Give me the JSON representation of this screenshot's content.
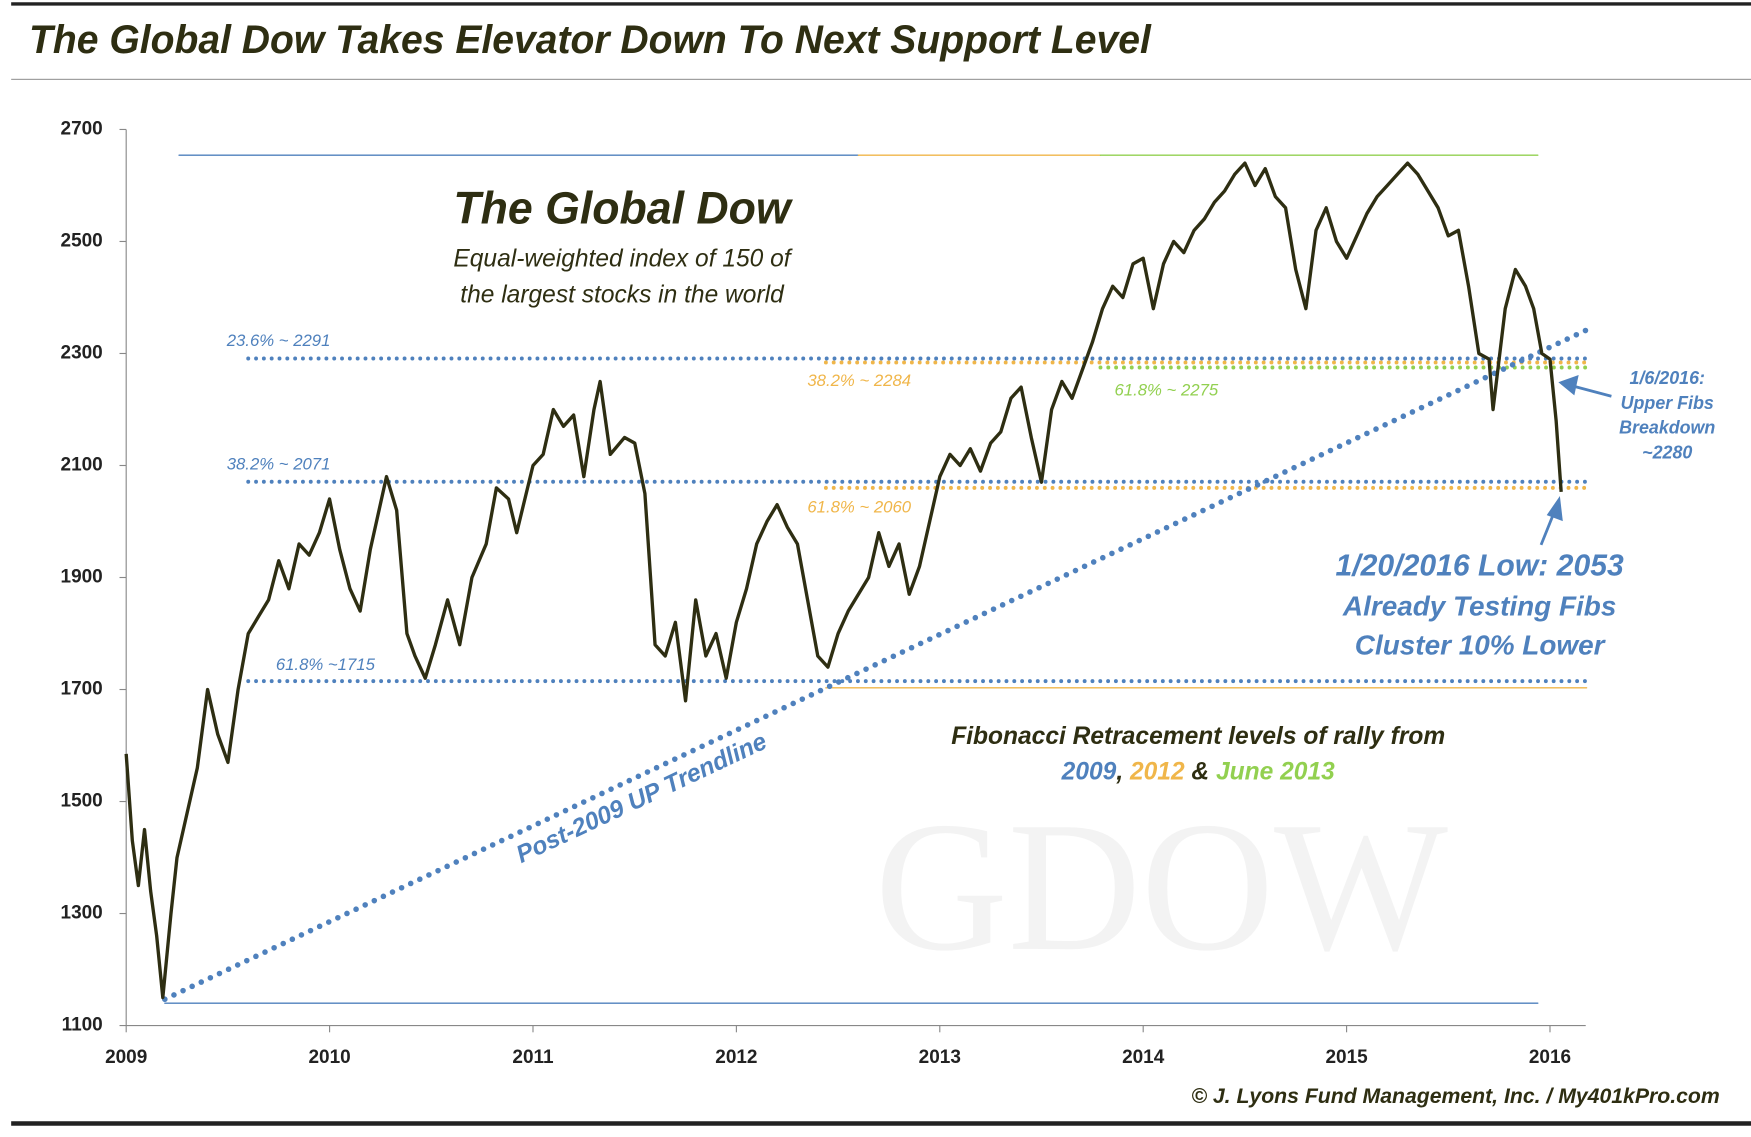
{
  "chart_data": {
    "type": "line",
    "title": "The Global Dow Takes Elevator Down To Next Support Level",
    "credit": "© J. Lyons Fund Management, Inc. / My401kPro.com",
    "watermark": "GDOW",
    "xlim": [
      2009,
      2016.15
    ],
    "xticks": [
      2009,
      2010,
      2011,
      2012,
      2013,
      2014,
      2015,
      2016
    ],
    "ylim": [
      1100,
      2700
    ],
    "yticks": [
      1100,
      1300,
      1500,
      1700,
      1900,
      2100,
      2300,
      2500,
      2700
    ],
    "series": [
      {
        "color": "#2e2e12",
        "x": [
          2009.0,
          2009.03,
          2009.06,
          2009.09,
          2009.12,
          2009.15,
          2009.18,
          2009.22,
          2009.25,
          2009.3,
          2009.35,
          2009.4,
          2009.45,
          2009.5,
          2009.55,
          2009.6,
          2009.65,
          2009.7,
          2009.75,
          2009.8,
          2009.85,
          2009.9,
          2009.95,
          2010.0,
          2010.05,
          2010.1,
          2010.15,
          2010.2,
          2010.28,
          2010.33,
          2010.38,
          2010.42,
          2010.47,
          2010.52,
          2010.58,
          2010.64,
          2010.7,
          2010.77,
          2010.82,
          2010.88,
          2010.92,
          2011.0,
          2011.05,
          2011.1,
          2011.15,
          2011.2,
          2011.25,
          2011.3,
          2011.33,
          2011.38,
          2011.45,
          2011.5,
          2011.55,
          2011.6,
          2011.65,
          2011.7,
          2011.75,
          2011.8,
          2011.85,
          2011.9,
          2011.95,
          2012.0,
          2012.05,
          2012.1,
          2012.15,
          2012.2,
          2012.25,
          2012.3,
          2012.35,
          2012.4,
          2012.45,
          2012.5,
          2012.55,
          2012.6,
          2012.65,
          2012.7,
          2012.75,
          2012.8,
          2012.85,
          2012.9,
          2012.95,
          2013.0,
          2013.05,
          2013.1,
          2013.15,
          2013.2,
          2013.25,
          2013.3,
          2013.35,
          2013.4,
          2013.45,
          2013.5,
          2013.55,
          2013.6,
          2013.65,
          2013.7,
          2013.75,
          2013.8,
          2013.85,
          2013.9,
          2013.95,
          2014.0,
          2014.05,
          2014.1,
          2014.15,
          2014.2,
          2014.25,
          2014.3,
          2014.35,
          2014.4,
          2014.45,
          2014.5,
          2014.55,
          2014.6,
          2014.65,
          2014.7,
          2014.75,
          2014.8,
          2014.85,
          2014.9,
          2014.95,
          2015.0,
          2015.05,
          2015.1,
          2015.15,
          2015.2,
          2015.25,
          2015.3,
          2015.35,
          2015.4,
          2015.45,
          2015.5,
          2015.55,
          2015.6,
          2015.65,
          2015.7,
          2015.72,
          2015.78,
          2015.83,
          2015.88,
          2015.92,
          2015.96,
          2016.0,
          2016.03,
          2016.055
        ],
        "values": [
          1585,
          1430,
          1350,
          1450,
          1340,
          1260,
          1150,
          1300,
          1400,
          1480,
          1560,
          1700,
          1620,
          1570,
          1700,
          1800,
          1830,
          1860,
          1930,
          1880,
          1960,
          1940,
          1980,
          2040,
          1950,
          1880,
          1840,
          1950,
          2080,
          2020,
          1800,
          1760,
          1720,
          1780,
          1860,
          1780,
          1900,
          1960,
          2060,
          2040,
          1980,
          2100,
          2120,
          2200,
          2170,
          2190,
          2080,
          2200,
          2250,
          2120,
          2150,
          2140,
          2050,
          1780,
          1760,
          1820,
          1680,
          1860,
          1760,
          1800,
          1720,
          1820,
          1880,
          1960,
          2000,
          2030,
          1990,
          1960,
          1860,
          1760,
          1740,
          1800,
          1840,
          1870,
          1900,
          1980,
          1920,
          1960,
          1870,
          1920,
          2000,
          2080,
          2120,
          2100,
          2130,
          2090,
          2140,
          2160,
          2220,
          2240,
          2150,
          2070,
          2200,
          2250,
          2220,
          2270,
          2320,
          2380,
          2420,
          2400,
          2460,
          2470,
          2380,
          2460,
          2500,
          2480,
          2520,
          2540,
          2570,
          2590,
          2620,
          2640,
          2600,
          2630,
          2580,
          2560,
          2450,
          2380,
          2520,
          2560,
          2500,
          2470,
          2510,
          2550,
          2580,
          2600,
          2620,
          2640,
          2620,
          2590,
          2560,
          2510,
          2520,
          2420,
          2300,
          2290,
          2200,
          2380,
          2450,
          2420,
          2380,
          2300,
          2290,
          2180,
          2053
        ]
      }
    ],
    "levels": [
      {
        "label": "23.6% ~ 2291",
        "value": 2291,
        "color": "#4f81bd",
        "x": [
          2009.6,
          2016.18
        ],
        "style": "dotted"
      },
      {
        "label": "38.2% ~ 2284",
        "value": 2284,
        "color": "#f0b64a",
        "x": [
          2012.44,
          2016.18
        ],
        "style": "dotted"
      },
      {
        "label": "61.8% ~ 2275",
        "value": 2275,
        "color": "#92d050",
        "x": [
          2013.79,
          2016.18
        ],
        "style": "dotted"
      },
      {
        "label": "38.2% ~ 2071",
        "value": 2071,
        "color": "#4f81bd",
        "x": [
          2009.6,
          2016.18
        ],
        "style": "dotted"
      },
      {
        "label": "61.8% ~ 2060",
        "value": 2060,
        "color": "#f0b64a",
        "x": [
          2012.44,
          2016.18
        ],
        "style": "dotted"
      },
      {
        "label": "61.8% ~1715",
        "value": 1715,
        "color": "#4f81bd",
        "x": [
          2009.6,
          2016.18
        ],
        "style": "dotted"
      },
      {
        "value": 2654,
        "color": "#4f81bd",
        "x": [
          2009.26,
          2012.6
        ],
        "style": "thin"
      },
      {
        "value": 2654,
        "color": "#f0b64a",
        "x": [
          2012.6,
          2013.79
        ],
        "style": "thin"
      },
      {
        "value": 2654,
        "color": "#92d050",
        "x": [
          2013.79,
          2015.94
        ],
        "style": "thin"
      },
      {
        "value": 1140,
        "color": "#4f81bd",
        "x": [
          2009.19,
          2015.94
        ],
        "style": "thin"
      },
      {
        "value": 1703,
        "color": "#f0b64a",
        "x": [
          2012.44,
          2016.18
        ],
        "style": "thin"
      }
    ],
    "trendline": {
      "label": "Post-2009 UP Trendline",
      "x": [
        2009.19,
        2016.18
      ],
      "values": [
        1147,
        2342
      ],
      "color": "#4f81bd"
    },
    "annotations": [
      {
        "text": "The Global Dow",
        "color": "#2e2e12"
      },
      {
        "text": "Equal-weighted index of 150 of",
        "color": "#2e2e12"
      },
      {
        "text": "the largest stocks in the world",
        "color": "#2e2e12"
      },
      {
        "text": "1/6/2016:",
        "color": "#4f81bd"
      },
      {
        "text": "Upper Fibs",
        "color": "#4f81bd"
      },
      {
        "text": "Breakdown",
        "color": "#4f81bd"
      },
      {
        "text": "~2280",
        "color": "#4f81bd"
      },
      {
        "text": "1/20/2016 Low: 2053",
        "color": "#4f81bd"
      },
      {
        "text": "Already Testing Fibs",
        "color": "#4f81bd"
      },
      {
        "text": "Cluster 10% Lower",
        "color": "#4f81bd"
      },
      {
        "text": "Fibonacci Retracement levels of rally from",
        "color": "#2e2e12"
      }
    ],
    "fib_note": [
      {
        "text": "2009",
        "color": "#4f81bd"
      },
      {
        "text": ", ",
        "color": "#2e2e12"
      },
      {
        "text": "2012",
        "color": "#f0b64a"
      },
      {
        "text": " & ",
        "color": "#2e2e12"
      },
      {
        "text": "June 2013",
        "color": "#92d050"
      }
    ]
  }
}
